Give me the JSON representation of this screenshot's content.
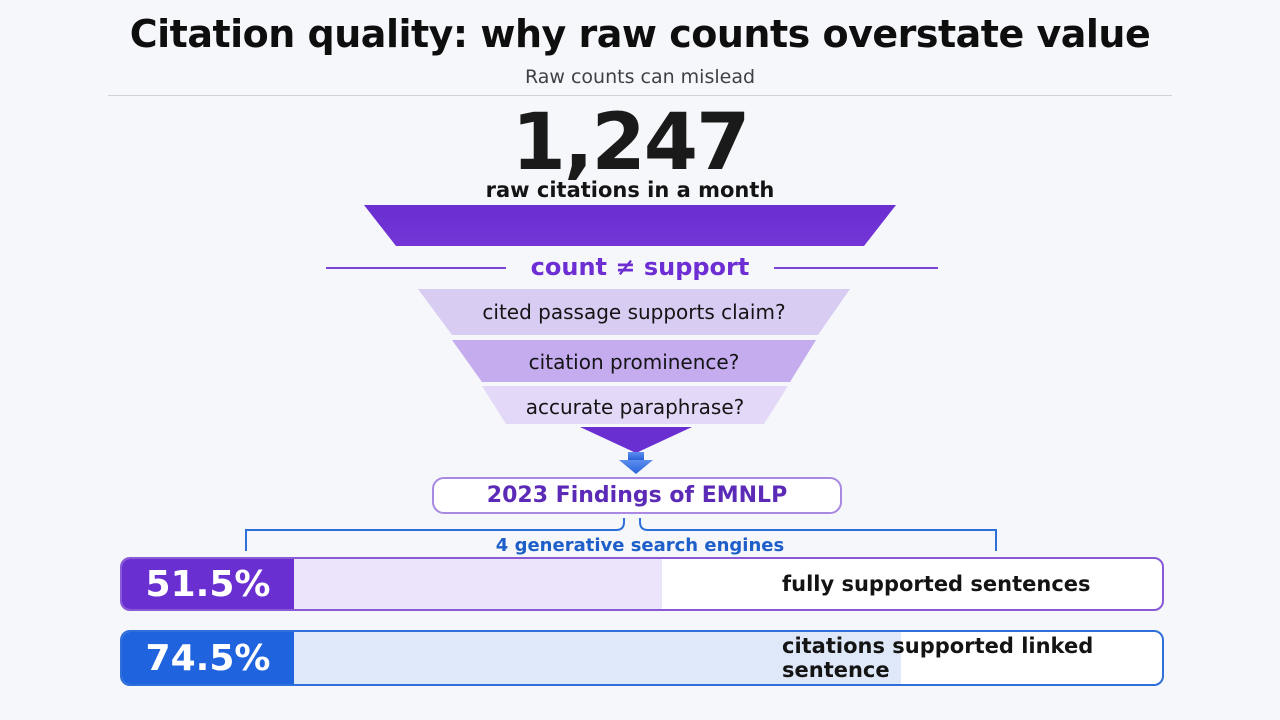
{
  "header": {
    "title": "Citation quality: why raw counts overstate value",
    "subtitle": "Raw counts can mislead"
  },
  "hero": {
    "number": "1,247",
    "label": "raw citations in a month"
  },
  "funnel": {
    "divider_label": "count ≠ support",
    "stages": [
      {
        "label": "cited passage supports claim?"
      },
      {
        "label": "citation prominence?"
      },
      {
        "label": "accurate paraphrase?"
      }
    ]
  },
  "source": {
    "label": "2023 Findings of EMNLP",
    "scope": "4 generative search engines"
  },
  "stats": [
    {
      "value": "51.5%",
      "fraction": 0.515,
      "label": "fully supported sentences"
    },
    {
      "value": "74.5%",
      "fraction": 0.745,
      "label": "citations supported linked sentence"
    }
  ],
  "colors": {
    "purple": "#6a2fd1",
    "blue": "#1f63df",
    "lavender": "#d8c8f4"
  }
}
